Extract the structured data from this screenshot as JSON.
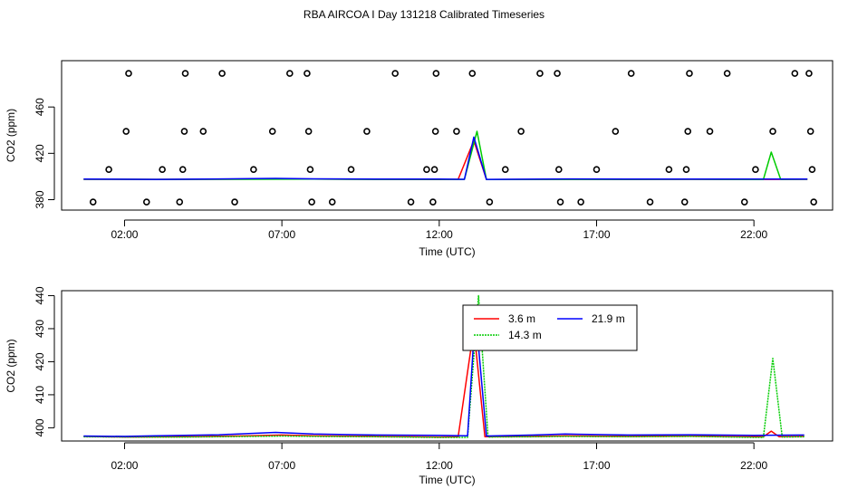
{
  "title": "RBA AIRCOA I  Day 131218  Calibrated Timeseries",
  "chart_data": [
    {
      "type": "scatter",
      "xlabel": "Time (UTC)",
      "ylabel": "CO2 (ppm)",
      "xlim": [
        0.0,
        24.5
      ],
      "ylim": [
        371,
        500
      ],
      "xticks": [
        2,
        7,
        12,
        17,
        22
      ],
      "xtick_labels": [
        "02:00",
        "07:00",
        "12:00",
        "17:00",
        "22:00"
      ],
      "yticks": [
        380,
        420,
        460
      ],
      "ytick_labels": [
        "380",
        "420",
        "460"
      ],
      "grid": false,
      "series": [
        {
          "color": "#ff0000",
          "kind": "line",
          "values": [
            [
              0.7,
              397.6
            ],
            [
              3,
              397.5
            ],
            [
              6,
              397.7
            ],
            [
              8,
              397.8
            ],
            [
              10,
              397.6
            ],
            [
              12,
              397.4
            ],
            [
              12.6,
              397.6
            ],
            [
              13.1,
              431
            ],
            [
              13.5,
              397.4
            ],
            [
              16,
              397.6
            ],
            [
              18,
              397.5
            ],
            [
              20,
              397.6
            ],
            [
              22,
              397.5
            ],
            [
              22.5,
              397.5
            ],
            [
              23.7,
              397.6
            ]
          ]
        },
        {
          "color": "#00cc00",
          "kind": "line",
          "values": [
            [
              0.7,
              397.6
            ],
            [
              3,
              397.5
            ],
            [
              6,
              397.6
            ],
            [
              8,
              397.7
            ],
            [
              10,
              397.5
            ],
            [
              12,
              397.5
            ],
            [
              12.8,
              397.5
            ],
            [
              13.2,
              439
            ],
            [
              13.5,
              397.4
            ],
            [
              16,
              397.5
            ],
            [
              18,
              397.5
            ],
            [
              20,
              397.6
            ],
            [
              22,
              397.4
            ],
            [
              22.3,
              397.4
            ],
            [
              22.55,
              421
            ],
            [
              22.85,
              397.5
            ],
            [
              23.7,
              397.6
            ]
          ]
        },
        {
          "color": "#0000ff",
          "kind": "line",
          "values": [
            [
              0.7,
              397.7
            ],
            [
              3,
              397.5
            ],
            [
              5,
              397.9
            ],
            [
              6.8,
              398.4
            ],
            [
              8,
              398.0
            ],
            [
              10,
              397.7
            ],
            [
              12,
              397.8
            ],
            [
              12.8,
              397.6
            ],
            [
              13.1,
              434
            ],
            [
              13.5,
              397.5
            ],
            [
              16,
              397.9
            ],
            [
              18,
              397.7
            ],
            [
              20,
              397.8
            ],
            [
              22,
              397.7
            ],
            [
              23.7,
              397.8
            ]
          ]
        },
        {
          "color": "#000000",
          "kind": "points",
          "values": [
            [
              1.0,
              378
            ],
            [
              1.5,
              406
            ],
            [
              2.05,
              439
            ],
            [
              2.13,
              489
            ],
            [
              2.7,
              378
            ],
            [
              3.2,
              406
            ],
            [
              3.75,
              378
            ],
            [
              3.85,
              406
            ],
            [
              3.9,
              439
            ],
            [
              3.93,
              489
            ],
            [
              4.5,
              439
            ],
            [
              5.1,
              489
            ],
            [
              5.5,
              378
            ],
            [
              6.1,
              406
            ],
            [
              6.7,
              439
            ],
            [
              7.25,
              489
            ],
            [
              7.8,
              489
            ],
            [
              7.85,
              439
            ],
            [
              7.9,
              406
            ],
            [
              7.95,
              378
            ],
            [
              8.6,
              378
            ],
            [
              9.2,
              406
            ],
            [
              9.7,
              439
            ],
            [
              10.6,
              489
            ],
            [
              11.1,
              378
            ],
            [
              11.6,
              406
            ],
            [
              11.8,
              378
            ],
            [
              11.85,
              406
            ],
            [
              11.88,
              439
            ],
            [
              11.9,
              489
            ],
            [
              12.55,
              439
            ],
            [
              13.05,
              489
            ],
            [
              13.6,
              378
            ],
            [
              14.1,
              406
            ],
            [
              14.6,
              439
            ],
            [
              15.2,
              489
            ],
            [
              15.75,
              489
            ],
            [
              15.8,
              406
            ],
            [
              15.85,
              378
            ],
            [
              16.5,
              378
            ],
            [
              17.0,
              406
            ],
            [
              17.6,
              439
            ],
            [
              18.1,
              489
            ],
            [
              18.7,
              378
            ],
            [
              19.3,
              406
            ],
            [
              19.8,
              378
            ],
            [
              19.85,
              406
            ],
            [
              19.9,
              439
            ],
            [
              19.95,
              489
            ],
            [
              20.6,
              439
            ],
            [
              21.15,
              489
            ],
            [
              21.7,
              378
            ],
            [
              22.05,
              406
            ],
            [
              22.6,
              439
            ],
            [
              23.3,
              489
            ],
            [
              23.75,
              489
            ],
            [
              23.8,
              439
            ],
            [
              23.85,
              406
            ],
            [
              23.9,
              378
            ]
          ]
        }
      ]
    },
    {
      "type": "line",
      "xlabel": "Time (UTC)",
      "ylabel": "CO2 (ppm)",
      "xlim": [
        0.0,
        24.5
      ],
      "ylim": [
        396,
        441.5
      ],
      "xticks": [
        2,
        7,
        12,
        17,
        22
      ],
      "xtick_labels": [
        "02:00",
        "07:00",
        "12:00",
        "17:00",
        "22:00"
      ],
      "yticks": [
        400,
        410,
        420,
        430,
        440
      ],
      "ytick_labels": [
        "400",
        "410",
        "420",
        "430",
        "440"
      ],
      "grid": false,
      "legend_position": "top-center",
      "series": [
        {
          "name": "3.6 m",
          "color": "#ff0000",
          "dash": "solid",
          "values": [
            [
              0.7,
              397.4
            ],
            [
              2,
              397.2
            ],
            [
              4,
              397.3
            ],
            [
              6,
              397.6
            ],
            [
              7,
              397.8
            ],
            [
              8,
              397.6
            ],
            [
              10,
              397.4
            ],
            [
              12,
              397.2
            ],
            [
              12.6,
              397.3
            ],
            [
              13.1,
              430
            ],
            [
              13.45,
              397.3
            ],
            [
              15,
              397.4
            ],
            [
              16,
              397.6
            ],
            [
              18,
              397.4
            ],
            [
              20,
              397.5
            ],
            [
              22,
              397.3
            ],
            [
              22.3,
              397.3
            ],
            [
              22.55,
              399
            ],
            [
              22.8,
              397.3
            ],
            [
              23.6,
              397.4
            ]
          ]
        },
        {
          "name": "14.3 m",
          "color": "#00cc00",
          "dash": "dotted",
          "values": [
            [
              0.7,
              397.3
            ],
            [
              2,
              397.2
            ],
            [
              4,
              397.2
            ],
            [
              6,
              397.4
            ],
            [
              7,
              397.5
            ],
            [
              8,
              397.4
            ],
            [
              10,
              397.3
            ],
            [
              12,
              397.1
            ],
            [
              12.9,
              397.1
            ],
            [
              13.25,
              440
            ],
            [
              13.55,
              397.2
            ],
            [
              15,
              397.3
            ],
            [
              16,
              397.4
            ],
            [
              18,
              397.3
            ],
            [
              20,
              397.4
            ],
            [
              22,
              397.1
            ],
            [
              22.3,
              397.1
            ],
            [
              22.6,
              421
            ],
            [
              22.9,
              397.2
            ],
            [
              23.6,
              397.3
            ]
          ]
        },
        {
          "name": "21.9 m",
          "color": "#0000ff",
          "dash": "solid",
          "values": [
            [
              0.7,
              397.5
            ],
            [
              2,
              397.4
            ],
            [
              3,
              397.6
            ],
            [
              5,
              397.9
            ],
            [
              6.8,
              398.6
            ],
            [
              8,
              398.1
            ],
            [
              10,
              397.8
            ],
            [
              12,
              397.7
            ],
            [
              12.9,
              397.6
            ],
            [
              13.15,
              435
            ],
            [
              13.5,
              397.5
            ],
            [
              15,
              397.8
            ],
            [
              16,
              398.1
            ],
            [
              18,
              397.8
            ],
            [
              20,
              397.9
            ],
            [
              22,
              397.7
            ],
            [
              23.6,
              397.8
            ]
          ]
        }
      ]
    }
  ]
}
